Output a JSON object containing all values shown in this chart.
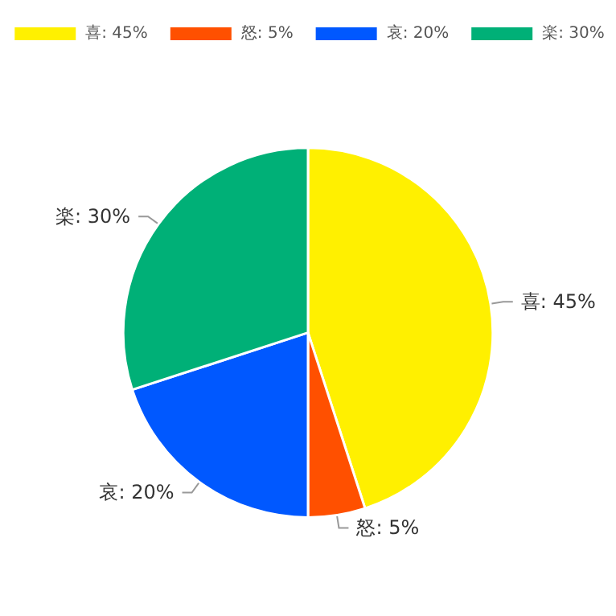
{
  "chart_data": {
    "type": "pie",
    "categories": [
      "喜: 45%",
      "怒: 5%",
      "哀: 20%",
      "楽: 30%"
    ],
    "values": [
      45,
      5,
      20,
      30
    ],
    "colors": [
      "#fff000",
      "#ff5000",
      "#0058ff",
      "#00b077"
    ],
    "legend": "top"
  }
}
